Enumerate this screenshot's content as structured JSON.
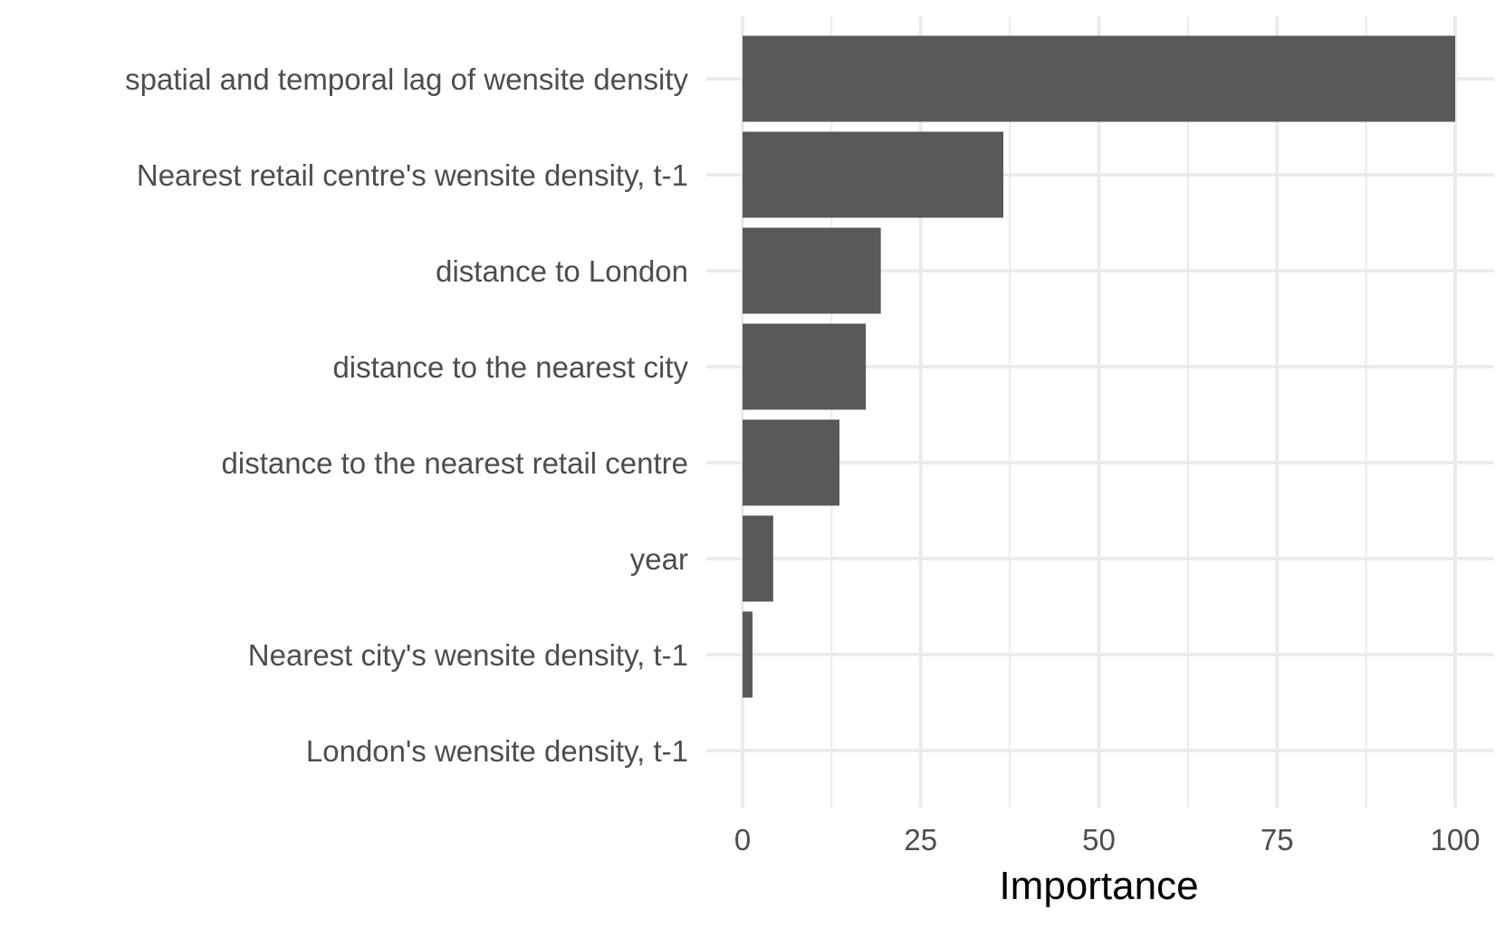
{
  "chart_data": {
    "type": "bar",
    "orientation": "horizontal",
    "title": "",
    "xlabel": "Importance",
    "ylabel": "",
    "xlim": [
      0,
      104
    ],
    "x_ticks": [
      0,
      25,
      50,
      75,
      100
    ],
    "grid": true,
    "legend": "none",
    "bar_color": "#595959",
    "grid_color": "#ebebeb",
    "categories": [
      "spatial and temporal lag of wensite density",
      "Nearest retail centre's wensite density, t-1",
      "distance to London",
      "distance to the nearest city",
      "distance to the nearest retail centre",
      "year",
      "Nearest city's wensite density, t-1",
      "London's wensite density, t-1"
    ],
    "values": [
      100,
      36.6,
      19.4,
      17.3,
      13.6,
      4.3,
      1.4,
      0
    ]
  }
}
